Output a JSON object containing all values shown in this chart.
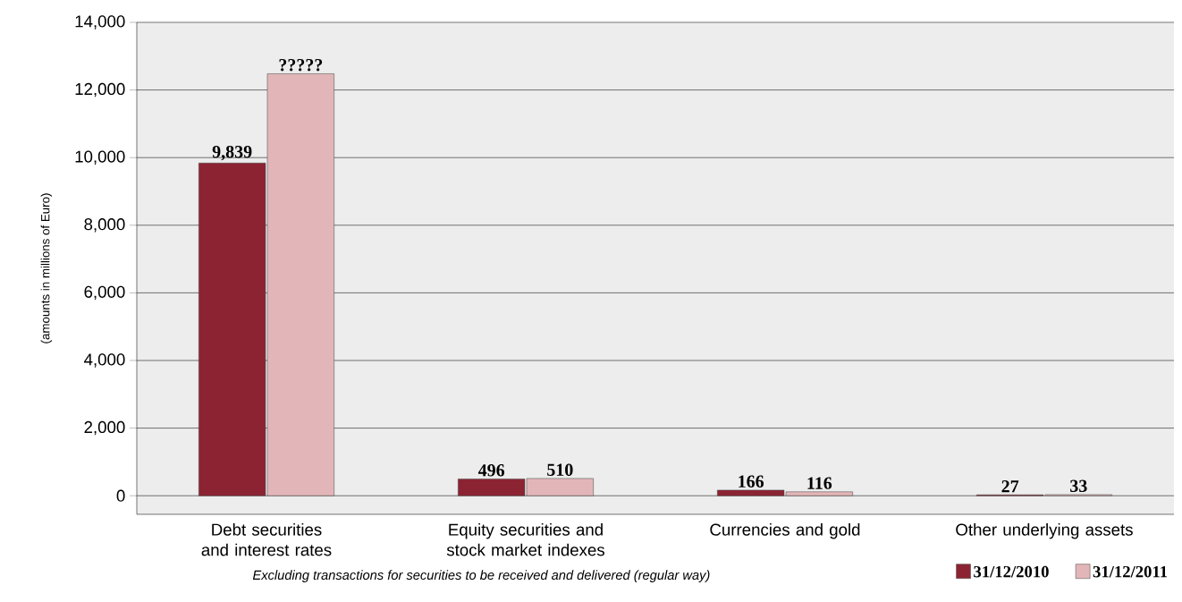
{
  "chart_data": {
    "type": "bar",
    "ylabel": "(amounts in millions of Euro)",
    "categories": [
      "Debt securities and interest rates",
      "Equity securities and stock market indexes",
      "Currencies and gold",
      "Other underlying assets"
    ],
    "series": [
      {
        "name": "31/12/2010",
        "color": "#8c2332",
        "values": [
          9839,
          496,
          166,
          27
        ],
        "value_labels": [
          "9,839",
          "496",
          "166",
          "27"
        ]
      },
      {
        "name": "31/12/2011",
        "color": "#e2b6b8",
        "values": [
          12480,
          510,
          116,
          33
        ],
        "value_labels": [
          "?????",
          "510",
          "116",
          "33"
        ]
      }
    ],
    "ylim": [
      -550,
      14000
    ],
    "yticks": [
      {
        "value": 0,
        "label": "0"
      },
      {
        "value": 2000,
        "label": "2,000"
      },
      {
        "value": 4000,
        "label": "4,000"
      },
      {
        "value": 6000,
        "label": "6,000"
      },
      {
        "value": 8000,
        "label": "8,000"
      },
      {
        "value": 10000,
        "label": "10,000"
      },
      {
        "value": 12000,
        "label": "12,000"
      },
      {
        "value": 14000,
        "label": "14,000"
      }
    ],
    "grid": "y",
    "legend": "bottom right",
    "annotations": [
      "Excluding transactions for securities to be received and delivered (regular way)"
    ]
  }
}
